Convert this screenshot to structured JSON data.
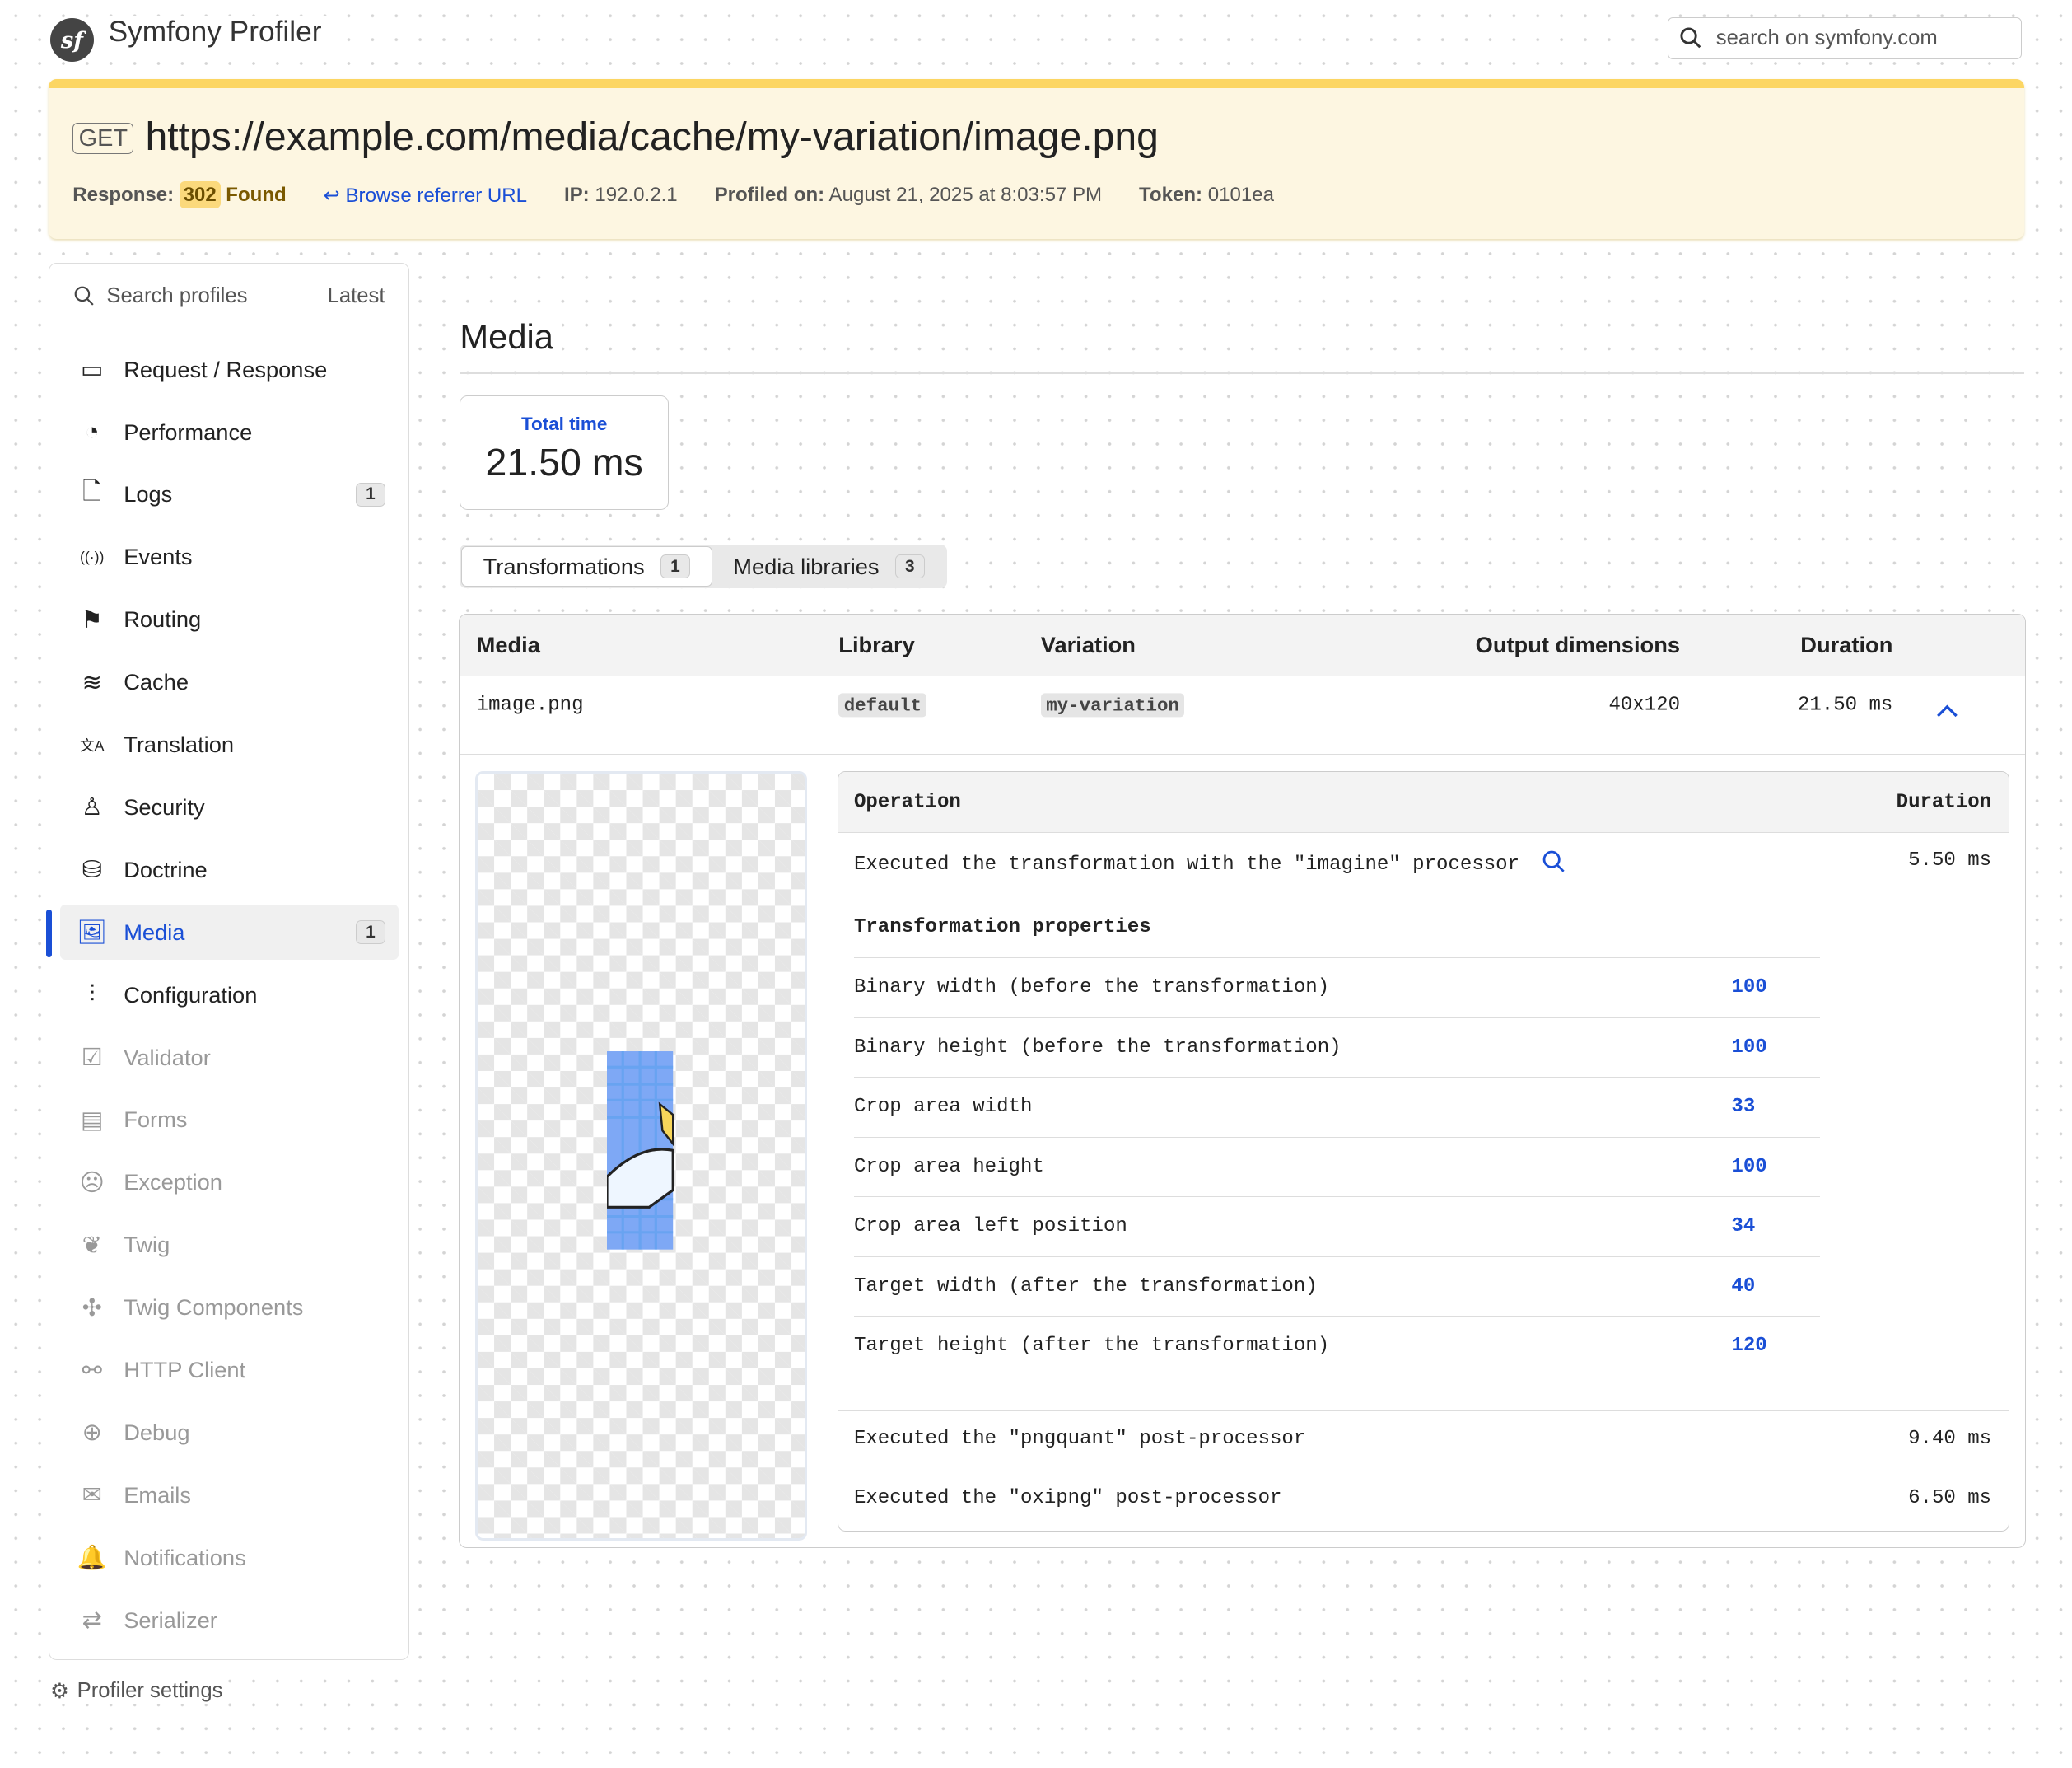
{
  "header": {
    "title": "Symfony Profiler",
    "logo_text": "sf",
    "search_placeholder": "search on symfony.com"
  },
  "summary": {
    "method": "GET",
    "url": "https://example.com/media/cache/my-variation/image.png",
    "response_label": "Response:",
    "status_code": "302",
    "status_text": "Found",
    "referrer_link": "Browse referrer URL",
    "ip_label": "IP:",
    "ip": "192.0.2.1",
    "profiled_label": "Profiled on:",
    "profiled_on": "August 21, 2025 at 8:03:57 PM",
    "token_label": "Token:",
    "token": "0101ea"
  },
  "sidebar": {
    "search_label": "Search profiles",
    "latest_label": "Latest",
    "items": [
      {
        "label": "Request / Response",
        "icon": "request-icon"
      },
      {
        "label": "Performance",
        "icon": "performance-icon"
      },
      {
        "label": "Logs",
        "icon": "logs-icon",
        "badge": "1"
      },
      {
        "label": "Events",
        "icon": "events-icon"
      },
      {
        "label": "Routing",
        "icon": "routing-icon"
      },
      {
        "label": "Cache",
        "icon": "cache-icon"
      },
      {
        "label": "Translation",
        "icon": "translation-icon"
      },
      {
        "label": "Security",
        "icon": "security-icon"
      },
      {
        "label": "Doctrine",
        "icon": "doctrine-icon"
      },
      {
        "label": "Media",
        "icon": "media-icon",
        "badge": "1",
        "active": true
      },
      {
        "label": "Configuration",
        "icon": "configuration-icon"
      },
      {
        "label": "Validator",
        "icon": "validator-icon",
        "disabled": true
      },
      {
        "label": "Forms",
        "icon": "forms-icon",
        "disabled": true
      },
      {
        "label": "Exception",
        "icon": "exception-icon",
        "disabled": true
      },
      {
        "label": "Twig",
        "icon": "twig-icon",
        "disabled": true
      },
      {
        "label": "Twig Components",
        "icon": "twig-components-icon",
        "disabled": true
      },
      {
        "label": "HTTP Client",
        "icon": "http-client-icon",
        "disabled": true
      },
      {
        "label": "Debug",
        "icon": "debug-icon",
        "disabled": true
      },
      {
        "label": "Emails",
        "icon": "emails-icon",
        "disabled": true
      },
      {
        "label": "Notifications",
        "icon": "notifications-icon",
        "disabled": true
      },
      {
        "label": "Serializer",
        "icon": "serializer-icon",
        "disabled": true
      }
    ],
    "settings_label": "Profiler settings"
  },
  "main": {
    "title": "Media",
    "metric": {
      "label": "Total time",
      "value": "21.50 ms"
    },
    "tabs": [
      {
        "label": "Transformations",
        "count": "1"
      },
      {
        "label": "Media libraries",
        "count": "3"
      }
    ],
    "table": {
      "headers": [
        "Media",
        "Library",
        "Variation",
        "Output dimensions",
        "Duration"
      ],
      "row": {
        "media": "image.png",
        "library": "default",
        "variation": "my-variation",
        "dimensions": "40x120",
        "duration": "21.50 ms"
      }
    },
    "operations": {
      "headers": [
        "Operation",
        "Duration"
      ],
      "main": {
        "text": "Executed the transformation with the \"imagine\" processor",
        "duration": "5.50 ms"
      },
      "props_title": "Transformation properties",
      "props": [
        {
          "label": "Binary width (before the transformation)",
          "value": "100"
        },
        {
          "label": "Binary height (before the transformation)",
          "value": "100"
        },
        {
          "label": "Crop area width",
          "value": "33"
        },
        {
          "label": "Crop area height",
          "value": "100"
        },
        {
          "label": "Crop area left position",
          "value": "34"
        },
        {
          "label": "Target width (after the transformation)",
          "value": "40"
        },
        {
          "label": "Target height (after the transformation)",
          "value": "120"
        }
      ],
      "post": [
        {
          "text": "Executed the \"pngquant\" post-processor",
          "duration": "9.40 ms"
        },
        {
          "text": "Executed the \"oxipng\" post-processor",
          "duration": "6.50 ms"
        }
      ]
    }
  },
  "colors": {
    "accent": "#1a4fd6",
    "summary_bg": "#fdf6e1",
    "summary_border": "#fcd663",
    "status_badge": "#fbd97c"
  }
}
